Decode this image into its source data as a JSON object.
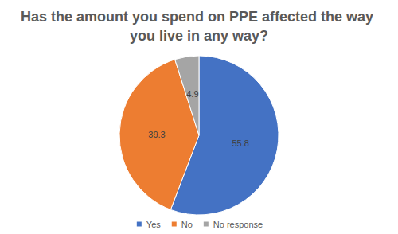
{
  "chart_data": {
    "type": "pie",
    "title": "Has the amount you spend on PPE affected the way you live in any way?",
    "categories": [
      "Yes",
      "No",
      "No response"
    ],
    "values": [
      55.8,
      39.3,
      4.9
    ],
    "colors": [
      "#4472c4",
      "#ed7d31",
      "#a5a5a5"
    ],
    "data_labels": true,
    "legend": "bottom"
  }
}
